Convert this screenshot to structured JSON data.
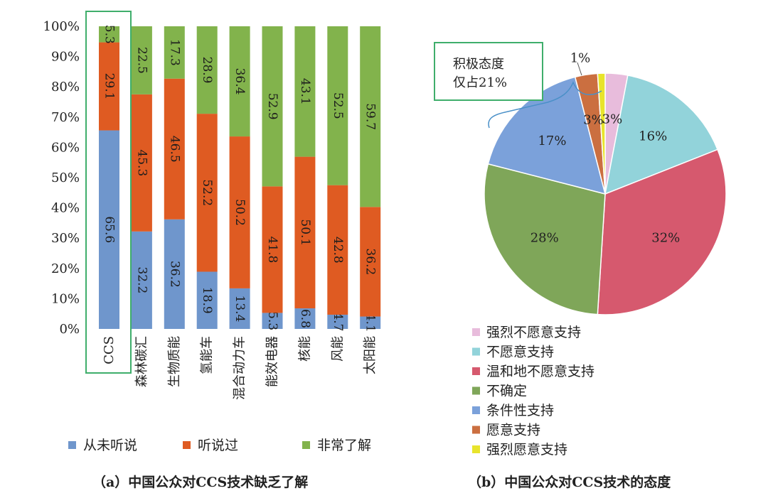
{
  "chart_data": [
    {
      "type": "bar",
      "stacked": true,
      "caption": "（a）中国公众对CCS技术缺乏了解",
      "categories": [
        "CCS",
        "森林碳汇",
        "生物质能",
        "氢能车",
        "混合动力车",
        "能效电器",
        "核能",
        "风能",
        "太阳能"
      ],
      "series": [
        {
          "name": "从未听说",
          "color": "#6f96cc",
          "values": [
            65.6,
            32.2,
            36.2,
            18.9,
            13.4,
            5.3,
            6.8,
            4.7,
            4.1
          ]
        },
        {
          "name": "听说过",
          "color": "#df5b22",
          "values": [
            29.1,
            45.3,
            46.5,
            52.2,
            50.2,
            41.8,
            50.1,
            42.8,
            36.2
          ]
        },
        {
          "name": "非常了解",
          "color": "#82b34c",
          "values": [
            5.3,
            22.5,
            17.3,
            28.9,
            36.4,
            52.9,
            43.1,
            52.5,
            59.7
          ]
        }
      ],
      "y_ticks": [
        "0%",
        "10%",
        "20%",
        "30%",
        "40%",
        "50%",
        "60%",
        "70%",
        "80%",
        "90%",
        "100%"
      ],
      "ylim": [
        0,
        100
      ],
      "grid": false,
      "legend_position": "bottom",
      "highlight_category": "CCS"
    },
    {
      "type": "pie",
      "caption": "（b）中国公众对CCS技术的态度",
      "slices": [
        {
          "name": "强烈不愿意支持",
          "value": 3,
          "label": "3%",
          "color": "#e8bcdc"
        },
        {
          "name": "不愿意支持",
          "value": 16,
          "label": "16%",
          "color": "#92d3da"
        },
        {
          "name": "温和地不愿意支持",
          "value": 32,
          "label": "32%",
          "color": "#d6596e"
        },
        {
          "name": "不确定",
          "value": 28,
          "label": "28%",
          "color": "#7fa659"
        },
        {
          "name": "条件性支持",
          "value": 17,
          "label": "17%",
          "color": "#7ba1da"
        },
        {
          "name": "愿意支持",
          "value": 3,
          "label": "3%",
          "color": "#cb6f40"
        },
        {
          "name": "强烈愿意支持",
          "value": 1,
          "label": "1%",
          "color": "#e8e42c"
        }
      ],
      "annotation": {
        "line1": "积极态度",
        "line2": "仅占21%"
      },
      "legend_position": "right-bottom"
    }
  ]
}
